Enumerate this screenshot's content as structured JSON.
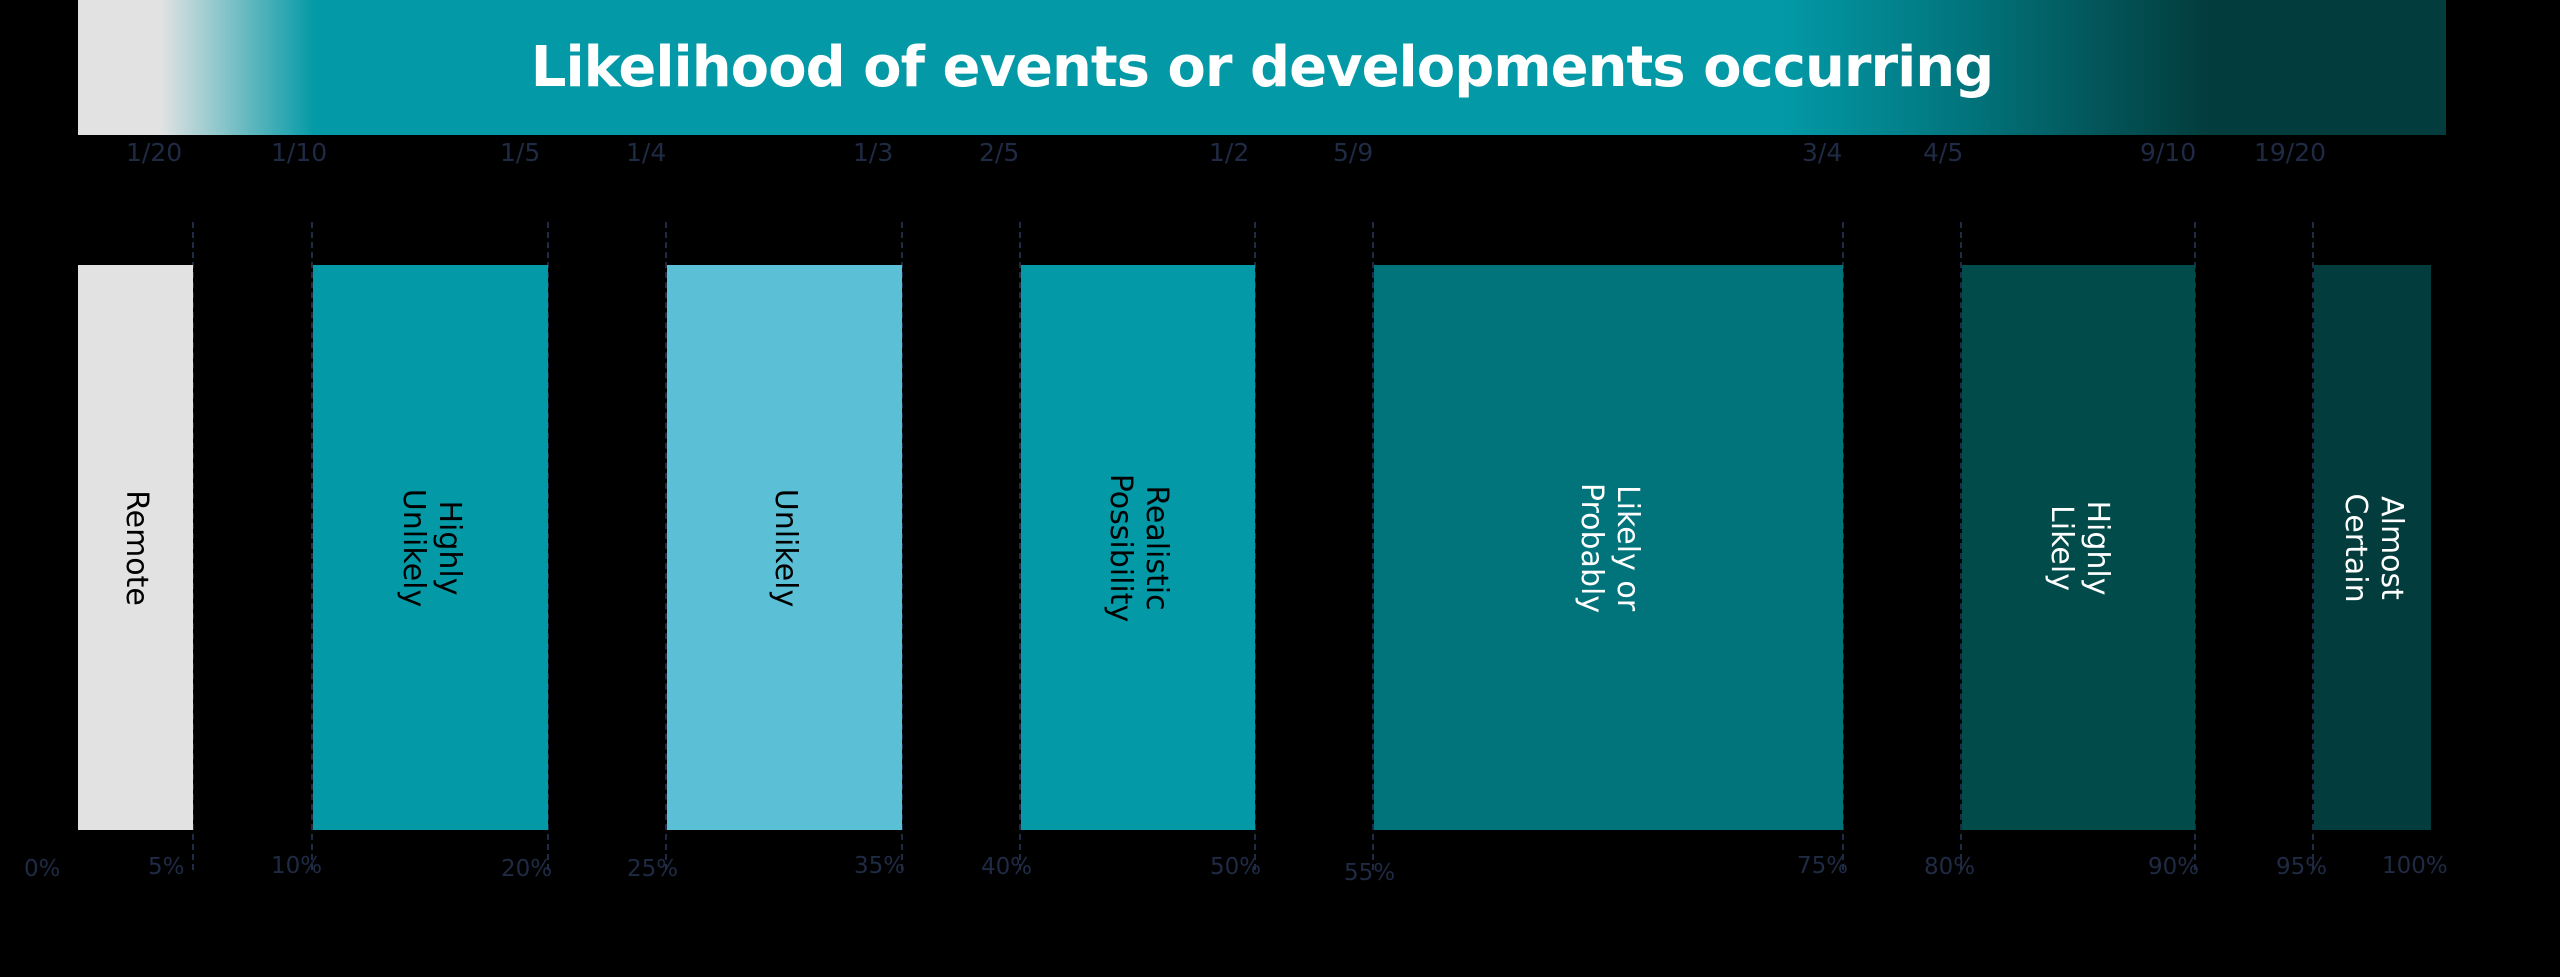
{
  "title": "Likelihood of events or developments occurring",
  "colors": {
    "light": "#e2e2e2",
    "teal": "#0399a6",
    "light_blue": "#5bbfd6",
    "dark_teal": "#01737b",
    "deep_teal": "#024b4b",
    "darkest_teal": "#033c3c",
    "label_dark": "#000000",
    "label_light": "#ffffff",
    "tick_text": "#1f2a44"
  },
  "fractions": [
    "1/20",
    "1/10",
    "1/5",
    "1/4",
    "1/3",
    "2/5",
    "1/2",
    "5/9",
    "3/4",
    "4/5",
    "9/10",
    "19/20"
  ],
  "percentages": [
    "0%",
    "5%",
    "10%",
    "20%",
    "25%",
    "35%",
    "40%",
    "50%",
    "55%",
    "75%",
    "80%",
    "90%",
    "95%",
    "100%"
  ],
  "chart_data": {
    "type": "bar",
    "title": "Likelihood of events or developments occurring",
    "bands": [
      {
        "label": "Remote",
        "start": 0,
        "end": 5,
        "color": "#e2e2e2"
      },
      {
        "label": "Highly\nUnlikely",
        "start": 10,
        "end": 20,
        "color": "#0399a6"
      },
      {
        "label": "Unlikely",
        "start": 25,
        "end": 35,
        "color": "#5bbfd6"
      },
      {
        "label": "Realistic\nPossibility",
        "start": 40,
        "end": 50,
        "color": "#0399a6"
      },
      {
        "label": "Likely or Probably",
        "start": 55,
        "end": 75,
        "color": "#01737b"
      },
      {
        "label": "Highly Likely",
        "start": 80,
        "end": 90,
        "color": "#024b4b"
      },
      {
        "label": "Almost Certain",
        "start": 95,
        "end": 100,
        "color": "#033c3c"
      }
    ],
    "xlim": [
      0,
      100
    ],
    "unit": "%"
  }
}
